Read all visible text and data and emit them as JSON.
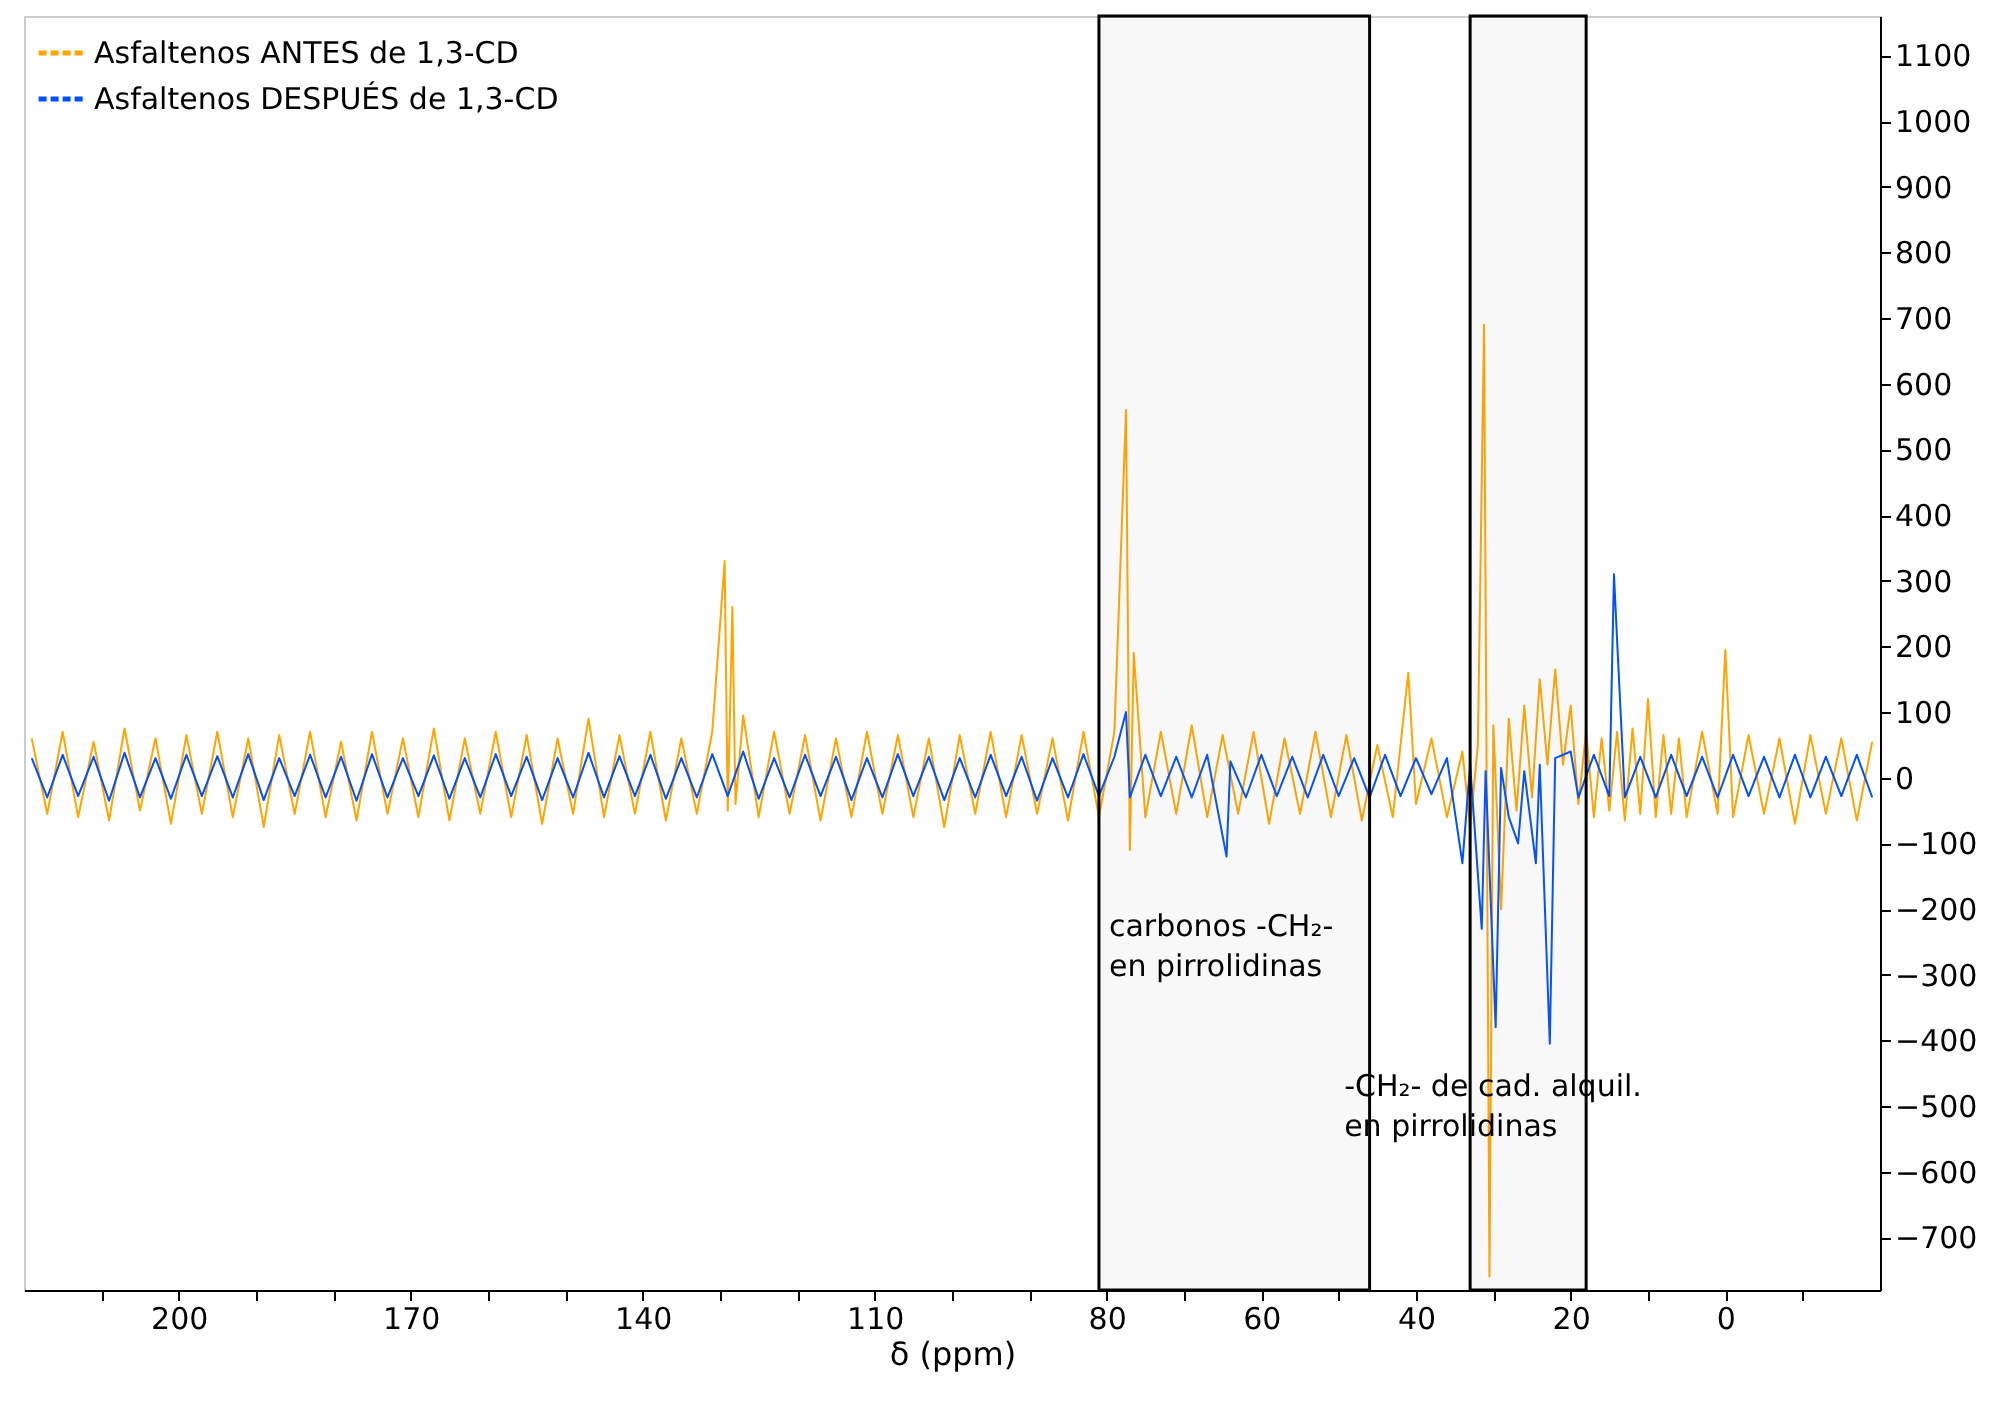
{
  "chart_data": {
    "type": "line",
    "xlabel": "δ (ppm)",
    "xlim": [
      220,
      -20
    ],
    "ylim": [
      -780,
      1160
    ],
    "xticks": [
      {
        "value": 210,
        "label": null
      },
      200,
      {
        "value": 190,
        "label": null
      },
      {
        "value": 180,
        "label": null
      },
      170,
      {
        "value": 160,
        "label": null
      },
      {
        "value": 150,
        "label": null
      },
      140,
      {
        "value": 130,
        "label": null
      },
      {
        "value": 120,
        "label": null
      },
      110,
      {
        "value": 100,
        "label": null
      },
      {
        "value": 90,
        "label": null
      },
      80,
      {
        "value": 70,
        "label": null
      },
      60,
      {
        "value": 50,
        "label": null
      },
      40,
      {
        "value": 30,
        "label": null
      },
      20,
      {
        "value": 10,
        "label": null
      },
      0,
      {
        "value": -10,
        "label": null
      }
    ],
    "yticks": [
      -700,
      -600,
      -500,
      -400,
      -300,
      -200,
      -100,
      0,
      100,
      200,
      300,
      400,
      500,
      600,
      700,
      800,
      900,
      1000,
      1100
    ],
    "grid": false,
    "legend": "top left",
    "series": [
      {
        "name": "Asfaltenos ANTES de 1,3-CD",
        "color": "#ffa500",
        "x": [
          219,
          217,
          215,
          213,
          211,
          209,
          207,
          205,
          203,
          201,
          199,
          197,
          195,
          193,
          191,
          189,
          187,
          185,
          183,
          181,
          179,
          177,
          175,
          173,
          171,
          169,
          167,
          165,
          163,
          161,
          159,
          157,
          155,
          153,
          151,
          149,
          147,
          145,
          143,
          141,
          139,
          137,
          135,
          133,
          131,
          129.4,
          129,
          128.4,
          128,
          127,
          125,
          123,
          121,
          119,
          117,
          115,
          113,
          111,
          109,
          107,
          105,
          103,
          101,
          99,
          97,
          95,
          93,
          91,
          89,
          87,
          85,
          83,
          81,
          79,
          77.5,
          77,
          76.5,
          75,
          73,
          71,
          69,
          67,
          65,
          63,
          61,
          59,
          57,
          55,
          53,
          51,
          49,
          47,
          45,
          43,
          41,
          40,
          38,
          36,
          34,
          33,
          32,
          31.2,
          30.5,
          30,
          29,
          28,
          27,
          26,
          25,
          24,
          23,
          22,
          21,
          20,
          19,
          18,
          17,
          16,
          15,
          14,
          13,
          12,
          11,
          10,
          9,
          8,
          7,
          6,
          5,
          3,
          1,
          0,
          -1,
          -3,
          -5,
          -7,
          -9,
          -11,
          -13,
          -15,
          -17,
          -19
        ],
        "values": [
          60,
          -55,
          70,
          -60,
          55,
          -65,
          75,
          -50,
          60,
          -70,
          65,
          -55,
          70,
          -60,
          60,
          -75,
          65,
          -55,
          70,
          -60,
          55,
          -65,
          70,
          -55,
          60,
          -60,
          75,
          -65,
          60,
          -55,
          70,
          -60,
          65,
          -70,
          60,
          -55,
          90,
          -60,
          65,
          -55,
          70,
          -65,
          60,
          -55,
          70,
          330,
          -50,
          260,
          -40,
          95,
          -60,
          70,
          -55,
          65,
          -65,
          60,
          -60,
          70,
          -55,
          65,
          -60,
          60,
          -75,
          65,
          -55,
          70,
          -60,
          65,
          -55,
          60,
          -65,
          70,
          -60,
          70,
          560,
          -110,
          190,
          -60,
          70,
          -55,
          80,
          -60,
          65,
          -55,
          70,
          -70,
          60,
          -55,
          70,
          -60,
          65,
          -65,
          50,
          -60,
          160,
          -40,
          60,
          -60,
          40,
          -75,
          50,
          690,
          -760,
          80,
          -200,
          90,
          -50,
          110,
          -30,
          150,
          20,
          165,
          20,
          110,
          -40,
          70,
          -60,
          60,
          -50,
          70,
          -65,
          75,
          -55,
          120,
          -60,
          65,
          -55,
          60,
          -60,
          70,
          -55,
          195,
          -60,
          65,
          -55,
          60,
          -70,
          65,
          -55,
          60,
          -65,
          55
        ]
      },
      {
        "name": "Asfaltenos DESPUÉS de 1,3-CD",
        "color": "#0050ff",
        "x": [
          219,
          217,
          215,
          213,
          211,
          209,
          207,
          205,
          203,
          201,
          199,
          197,
          195,
          193,
          191,
          189,
          187,
          185,
          183,
          181,
          179,
          177,
          175,
          173,
          171,
          169,
          167,
          165,
          163,
          161,
          159,
          157,
          155,
          153,
          151,
          149,
          147,
          145,
          143,
          141,
          139,
          137,
          135,
          133,
          131,
          129,
          127,
          125,
          123,
          121,
          119,
          117,
          115,
          113,
          111,
          109,
          107,
          105,
          103,
          101,
          99,
          97,
          95,
          93,
          91,
          89,
          87,
          85,
          83,
          81,
          79,
          77.5,
          77,
          75,
          73,
          71,
          69,
          67,
          64.5,
          64,
          62,
          60,
          58,
          56,
          54,
          52,
          50,
          48,
          46,
          44,
          42,
          40,
          38,
          36,
          34,
          33,
          31.5,
          31,
          29.7,
          29,
          28,
          26.8,
          26,
          24.5,
          24,
          22.7,
          22,
          20,
          19,
          17,
          15,
          14.4,
          14,
          13,
          11,
          9,
          7,
          5,
          3,
          1,
          -1,
          -3,
          -5,
          -7,
          -9,
          -11,
          -13,
          -15,
          -17,
          -19
        ],
        "values": [
          30,
          -30,
          35,
          -28,
          32,
          -35,
          38,
          -30,
          30,
          -32,
          35,
          -28,
          33,
          -30,
          36,
          -34,
          30,
          -28,
          35,
          -30,
          32,
          -35,
          36,
          -30,
          30,
          -28,
          34,
          -32,
          30,
          -30,
          36,
          -28,
          32,
          -34,
          30,
          -30,
          38,
          -30,
          33,
          -28,
          35,
          -32,
          30,
          -30,
          36,
          -28,
          40,
          -32,
          30,
          -30,
          35,
          -28,
          32,
          -34,
          30,
          -30,
          36,
          -28,
          32,
          -34,
          30,
          -30,
          35,
          -28,
          32,
          -35,
          30,
          -30,
          36,
          -28,
          32,
          100,
          -30,
          35,
          -28,
          32,
          -30,
          35,
          -120,
          25,
          -30,
          35,
          -28,
          32,
          -30,
          35,
          -28,
          30,
          -30,
          35,
          -28,
          30,
          -25,
          30,
          -130,
          20,
          -230,
          10,
          -380,
          15,
          -60,
          -100,
          10,
          -130,
          20,
          -405,
          30,
          40,
          -30,
          35,
          -28,
          310,
          210,
          -30,
          32,
          -30,
          35,
          -28,
          32,
          -30,
          35,
          -28,
          32,
          -30,
          35,
          -30,
          32,
          -28,
          35,
          -30
        ]
      }
    ],
    "bands": [
      {
        "axis": "x",
        "from": 81,
        "to": 46
      },
      {
        "axis": "x",
        "from": 33,
        "to": 18
      }
    ],
    "annotations": [
      "carbonos -CH₂-\nen pirrolidinas",
      "-CH₂- de cad. alquil.\nen pirrolidinas"
    ]
  }
}
